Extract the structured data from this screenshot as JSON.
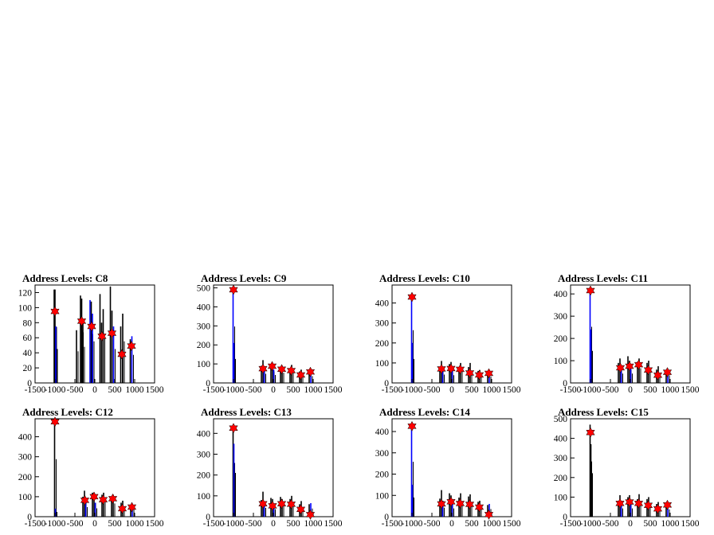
{
  "chart_data": [
    {
      "type": "bar",
      "title": "Address Levels: C8",
      "xlim": [
        -1500,
        1500
      ],
      "ylim": [
        0,
        130
      ],
      "yticks": [
        0,
        20,
        40,
        60,
        80,
        100,
        120
      ],
      "xticks": [
        -1500,
        -1000,
        -500,
        0,
        500,
        1000,
        1500
      ],
      "xtick_labels": [
        "-1500",
        "-1000",
        "-500",
        "0",
        "500",
        "1000",
        "1500"
      ],
      "peaks": [
        {
          "x": -1000,
          "y": 95
        },
        {
          "x": -330,
          "y": 82
        },
        {
          "x": -80,
          "y": 75
        },
        {
          "x": 180,
          "y": 62
        },
        {
          "x": 430,
          "y": 66
        },
        {
          "x": 680,
          "y": 38
        },
        {
          "x": 920,
          "y": 49
        }
      ],
      "bars": [
        {
          "x": -1020,
          "h": 124,
          "c": "k"
        },
        {
          "x": -1000,
          "h": 124,
          "c": "k"
        },
        {
          "x": -980,
          "h": 75,
          "c": "b"
        },
        {
          "x": -460,
          "h": 70,
          "c": "k"
        },
        {
          "x": -360,
          "h": 116,
          "c": "k"
        },
        {
          "x": -330,
          "h": 112,
          "c": "k"
        },
        {
          "x": -300,
          "h": 80,
          "c": "k"
        },
        {
          "x": -120,
          "h": 110,
          "c": "b"
        },
        {
          "x": -90,
          "h": 108,
          "c": "k"
        },
        {
          "x": -60,
          "h": 92,
          "c": "b"
        },
        {
          "x": 130,
          "h": 118,
          "c": "k"
        },
        {
          "x": 170,
          "h": 80,
          "c": "k"
        },
        {
          "x": 210,
          "h": 98,
          "c": "k"
        },
        {
          "x": 390,
          "h": 128,
          "c": "k"
        },
        {
          "x": 430,
          "h": 96,
          "c": "k"
        },
        {
          "x": 470,
          "h": 75,
          "c": "b"
        },
        {
          "x": 650,
          "h": 75,
          "c": "k"
        },
        {
          "x": 700,
          "h": 92,
          "c": "k"
        },
        {
          "x": 890,
          "h": 58,
          "c": "k"
        },
        {
          "x": 930,
          "h": 62,
          "c": "b"
        }
      ]
    },
    {
      "type": "bar",
      "title": "Address Levels: C9",
      "xlim": [
        -1500,
        1500
      ],
      "ylim": [
        0,
        515
      ],
      "yticks": [
        0,
        100,
        200,
        300,
        400,
        500
      ],
      "xticks": [
        -1500,
        -1000,
        -500,
        0,
        500,
        1000,
        1500
      ],
      "xtick_labels": [
        "-1500",
        "-1000",
        "-500",
        "0",
        "500",
        "1000",
        "1500"
      ],
      "peaks": [
        {
          "x": -1000,
          "y": 490
        },
        {
          "x": -260,
          "y": 75
        },
        {
          "x": -30,
          "y": 88
        },
        {
          "x": 210,
          "y": 72
        },
        {
          "x": 450,
          "y": 65
        },
        {
          "x": 690,
          "y": 42
        },
        {
          "x": 930,
          "y": 58
        }
      ],
      "bars": [
        {
          "x": -1010,
          "h": 495,
          "c": "b"
        },
        {
          "x": -990,
          "h": 210,
          "c": "b"
        },
        {
          "x": -300,
          "h": 90,
          "c": "k"
        },
        {
          "x": -260,
          "h": 120,
          "c": "k"
        },
        {
          "x": -230,
          "h": 80,
          "c": "b"
        },
        {
          "x": -60,
          "h": 95,
          "c": "k"
        },
        {
          "x": -20,
          "h": 100,
          "c": "k"
        },
        {
          "x": 10,
          "h": 70,
          "c": "b"
        },
        {
          "x": 180,
          "h": 85,
          "c": "k"
        },
        {
          "x": 220,
          "h": 90,
          "c": "k"
        },
        {
          "x": 420,
          "h": 75,
          "c": "k"
        },
        {
          "x": 460,
          "h": 95,
          "c": "k"
        },
        {
          "x": 660,
          "h": 60,
          "c": "k"
        },
        {
          "x": 700,
          "h": 70,
          "c": "k"
        },
        {
          "x": 900,
          "h": 65,
          "c": "k"
        },
        {
          "x": 940,
          "h": 60,
          "c": "b"
        }
      ]
    },
    {
      "type": "bar",
      "title": "Address Levels: C10",
      "xlim": [
        -1500,
        1500
      ],
      "ylim": [
        0,
        490
      ],
      "yticks": [
        0,
        100,
        200,
        300,
        400
      ],
      "xticks": [
        -1500,
        -1000,
        -500,
        0,
        500,
        1000,
        1500
      ],
      "xtick_labels": [
        "-1500",
        "-1000",
        "-500",
        "0",
        "500",
        "1000",
        "1500"
      ],
      "peaks": [
        {
          "x": -1000,
          "y": 430
        },
        {
          "x": -260,
          "y": 70
        },
        {
          "x": -20,
          "y": 72
        },
        {
          "x": 210,
          "y": 68
        },
        {
          "x": 450,
          "y": 50
        },
        {
          "x": 690,
          "y": 40
        },
        {
          "x": 930,
          "y": 48
        }
      ],
      "bars": [
        {
          "x": -1010,
          "h": 440,
          "c": "b"
        },
        {
          "x": -990,
          "h": 200,
          "c": "b"
        },
        {
          "x": -300,
          "h": 80,
          "c": "k"
        },
        {
          "x": -260,
          "h": 110,
          "c": "k"
        },
        {
          "x": -230,
          "h": 70,
          "c": "b"
        },
        {
          "x": -60,
          "h": 95,
          "c": "k"
        },
        {
          "x": -20,
          "h": 105,
          "c": "k"
        },
        {
          "x": 10,
          "h": 65,
          "c": "b"
        },
        {
          "x": 180,
          "h": 80,
          "c": "k"
        },
        {
          "x": 220,
          "h": 100,
          "c": "k"
        },
        {
          "x": 420,
          "h": 80,
          "c": "k"
        },
        {
          "x": 460,
          "h": 100,
          "c": "k"
        },
        {
          "x": 660,
          "h": 60,
          "c": "k"
        },
        {
          "x": 700,
          "h": 65,
          "c": "k"
        },
        {
          "x": 900,
          "h": 60,
          "c": "k"
        },
        {
          "x": 940,
          "h": 55,
          "c": "b"
        }
      ]
    },
    {
      "type": "bar",
      "title": "Address Levels: C11",
      "xlim": [
        -1500,
        1500
      ],
      "ylim": [
        0,
        440
      ],
      "yticks": [
        0,
        100,
        200,
        300,
        400
      ],
      "xticks": [
        -1500,
        -1000,
        -500,
        0,
        500,
        1000,
        1500
      ],
      "xtick_labels": [
        "-1500",
        "-1000",
        "-500",
        "0",
        "500",
        "1000",
        "1500"
      ],
      "peaks": [
        {
          "x": -1000,
          "y": 415
        },
        {
          "x": -250,
          "y": 68
        },
        {
          "x": -20,
          "y": 75
        },
        {
          "x": 210,
          "y": 82
        },
        {
          "x": 450,
          "y": 58
        },
        {
          "x": 690,
          "y": 35
        },
        {
          "x": 930,
          "y": 48
        }
      ],
      "bars": [
        {
          "x": -1010,
          "h": 420,
          "c": "b"
        },
        {
          "x": -990,
          "h": 240,
          "c": "b"
        },
        {
          "x": -300,
          "h": 90,
          "c": "k"
        },
        {
          "x": -260,
          "h": 110,
          "c": "k"
        },
        {
          "x": -230,
          "h": 70,
          "c": "b"
        },
        {
          "x": -60,
          "h": 120,
          "c": "k"
        },
        {
          "x": -20,
          "h": 100,
          "c": "k"
        },
        {
          "x": 10,
          "h": 70,
          "c": "b"
        },
        {
          "x": 180,
          "h": 95,
          "c": "k"
        },
        {
          "x": 220,
          "h": 110,
          "c": "k"
        },
        {
          "x": 420,
          "h": 90,
          "c": "k"
        },
        {
          "x": 460,
          "h": 100,
          "c": "k"
        },
        {
          "x": 660,
          "h": 60,
          "c": "k"
        },
        {
          "x": 700,
          "h": 75,
          "c": "k"
        },
        {
          "x": 900,
          "h": 55,
          "c": "k"
        },
        {
          "x": 940,
          "h": 58,
          "c": "b"
        }
      ]
    },
    {
      "type": "bar",
      "title": "Address Levels: C12",
      "xlim": [
        -1500,
        1500
      ],
      "ylim": [
        0,
        490
      ],
      "yticks": [
        0,
        100,
        200,
        300,
        400
      ],
      "xticks": [
        -1500,
        -1000,
        -500,
        0,
        500,
        1000,
        1500
      ],
      "xtick_labels": [
        "-1500",
        "-1000",
        "-500",
        "0",
        "500",
        "1000",
        "1500"
      ],
      "peaks": [
        {
          "x": -1000,
          "y": 475
        },
        {
          "x": -250,
          "y": 82
        },
        {
          "x": -20,
          "y": 100
        },
        {
          "x": 210,
          "y": 85
        },
        {
          "x": 450,
          "y": 90
        },
        {
          "x": 690,
          "y": 40
        },
        {
          "x": 930,
          "y": 48
        }
      ],
      "bars": [
        {
          "x": -1010,
          "h": 480,
          "c": "k"
        },
        {
          "x": -990,
          "h": 40,
          "c": "b"
        },
        {
          "x": -300,
          "h": 100,
          "c": "k"
        },
        {
          "x": -260,
          "h": 130,
          "c": "k"
        },
        {
          "x": -230,
          "h": 80,
          "c": "b"
        },
        {
          "x": -60,
          "h": 120,
          "c": "k"
        },
        {
          "x": -20,
          "h": 115,
          "c": "k"
        },
        {
          "x": 10,
          "h": 70,
          "c": "b"
        },
        {
          "x": 180,
          "h": 110,
          "c": "k"
        },
        {
          "x": 220,
          "h": 120,
          "c": "k"
        },
        {
          "x": 420,
          "h": 100,
          "c": "k"
        },
        {
          "x": 460,
          "h": 110,
          "c": "k"
        },
        {
          "x": 660,
          "h": 70,
          "c": "k"
        },
        {
          "x": 700,
          "h": 80,
          "c": "k"
        },
        {
          "x": 900,
          "h": 60,
          "c": "k"
        },
        {
          "x": 940,
          "h": 65,
          "c": "b"
        }
      ]
    },
    {
      "type": "bar",
      "title": "Address Levels: C13",
      "xlim": [
        -1500,
        1500
      ],
      "ylim": [
        0,
        470
      ],
      "yticks": [
        0,
        100,
        200,
        300,
        400
      ],
      "xticks": [
        -1500,
        -1000,
        -500,
        0,
        500,
        1000,
        1500
      ],
      "xtick_labels": [
        "-1500",
        "-1000",
        "-500",
        "0",
        "500",
        "1000",
        "1500"
      ],
      "peaks": [
        {
          "x": -1000,
          "y": 425
        },
        {
          "x": -260,
          "y": 62
        },
        {
          "x": -20,
          "y": 52
        },
        {
          "x": 210,
          "y": 62
        },
        {
          "x": 450,
          "y": 60
        },
        {
          "x": 690,
          "y": 35
        },
        {
          "x": 930,
          "y": 10
        }
      ],
      "bars": [
        {
          "x": -1010,
          "h": 430,
          "c": "k"
        },
        {
          "x": -990,
          "h": 350,
          "c": "b"
        },
        {
          "x": -300,
          "h": 80,
          "c": "k"
        },
        {
          "x": -260,
          "h": 120,
          "c": "k"
        },
        {
          "x": -230,
          "h": 70,
          "c": "b"
        },
        {
          "x": -60,
          "h": 90,
          "c": "k"
        },
        {
          "x": -20,
          "h": 85,
          "c": "k"
        },
        {
          "x": 10,
          "h": 60,
          "c": "b"
        },
        {
          "x": 180,
          "h": 95,
          "c": "k"
        },
        {
          "x": 220,
          "h": 85,
          "c": "k"
        },
        {
          "x": 420,
          "h": 85,
          "c": "k"
        },
        {
          "x": 460,
          "h": 100,
          "c": "k"
        },
        {
          "x": 660,
          "h": 60,
          "c": "k"
        },
        {
          "x": 700,
          "h": 75,
          "c": "k"
        },
        {
          "x": 900,
          "h": 60,
          "c": "k"
        },
        {
          "x": 940,
          "h": 65,
          "c": "b"
        }
      ]
    },
    {
      "type": "bar",
      "title": "Address Levels: C14",
      "xlim": [
        -1500,
        1500
      ],
      "ylim": [
        0,
        460
      ],
      "yticks": [
        0,
        100,
        200,
        300,
        400
      ],
      "xticks": [
        -1500,
        -1000,
        -500,
        0,
        500,
        1000,
        1500
      ],
      "xtick_labels": [
        "-1500",
        "-1000",
        "-500",
        "0",
        "500",
        "1000",
        "1500"
      ],
      "peaks": [
        {
          "x": -1000,
          "y": 425
        },
        {
          "x": -260,
          "y": 60
        },
        {
          "x": -20,
          "y": 70
        },
        {
          "x": 210,
          "y": 62
        },
        {
          "x": 450,
          "y": 58
        },
        {
          "x": 690,
          "y": 45
        },
        {
          "x": 930,
          "y": 10
        }
      ],
      "bars": [
        {
          "x": -1010,
          "h": 430,
          "c": "b"
        },
        {
          "x": -990,
          "h": 150,
          "c": "b"
        },
        {
          "x": -300,
          "h": 85,
          "c": "k"
        },
        {
          "x": -260,
          "h": 125,
          "c": "k"
        },
        {
          "x": -230,
          "h": 70,
          "c": "b"
        },
        {
          "x": -60,
          "h": 110,
          "c": "k"
        },
        {
          "x": -20,
          "h": 100,
          "c": "k"
        },
        {
          "x": 10,
          "h": 65,
          "c": "b"
        },
        {
          "x": 180,
          "h": 90,
          "c": "k"
        },
        {
          "x": 220,
          "h": 110,
          "c": "k"
        },
        {
          "x": 420,
          "h": 95,
          "c": "k"
        },
        {
          "x": 460,
          "h": 105,
          "c": "k"
        },
        {
          "x": 660,
          "h": 70,
          "c": "k"
        },
        {
          "x": 700,
          "h": 75,
          "c": "k"
        },
        {
          "x": 900,
          "h": 55,
          "c": "k"
        },
        {
          "x": 940,
          "h": 60,
          "c": "b"
        }
      ]
    },
    {
      "type": "bar",
      "title": "Address Levels: C15",
      "xlim": [
        -1500,
        1500
      ],
      "ylim": [
        0,
        500
      ],
      "yticks": [
        0,
        100,
        200,
        300,
        400,
        500
      ],
      "xticks": [
        -1500,
        -1000,
        -500,
        0,
        500,
        1000,
        1500
      ],
      "xtick_labels": [
        "-1500",
        "-1000",
        "-500",
        "0",
        "500",
        "1000",
        "1500"
      ],
      "peaks": [
        {
          "x": -1000,
          "y": 430
        },
        {
          "x": -260,
          "y": 68
        },
        {
          "x": -20,
          "y": 75
        },
        {
          "x": 210,
          "y": 68
        },
        {
          "x": 450,
          "y": 58
        },
        {
          "x": 690,
          "y": 40
        },
        {
          "x": 930,
          "y": 60
        }
      ],
      "bars": [
        {
          "x": -1010,
          "h": 470,
          "c": "k"
        },
        {
          "x": -990,
          "h": 370,
          "c": "k"
        },
        {
          "x": -300,
          "h": 80,
          "c": "k"
        },
        {
          "x": -260,
          "h": 110,
          "c": "k"
        },
        {
          "x": -230,
          "h": 70,
          "c": "b"
        },
        {
          "x": -60,
          "h": 100,
          "c": "k"
        },
        {
          "x": -20,
          "h": 110,
          "c": "k"
        },
        {
          "x": 10,
          "h": 70,
          "c": "b"
        },
        {
          "x": 180,
          "h": 90,
          "c": "k"
        },
        {
          "x": 220,
          "h": 115,
          "c": "k"
        },
        {
          "x": 420,
          "h": 90,
          "c": "k"
        },
        {
          "x": 460,
          "h": 100,
          "c": "k"
        },
        {
          "x": 660,
          "h": 65,
          "c": "k"
        },
        {
          "x": 700,
          "h": 75,
          "c": "k"
        },
        {
          "x": 900,
          "h": 55,
          "c": "k"
        },
        {
          "x": 940,
          "h": 62,
          "c": "b"
        }
      ]
    }
  ],
  "colors": {
    "primary_bar": "#000000",
    "secondary_bar": "#0000ff",
    "marker": "#ff0000",
    "marker_edge": "#000000"
  }
}
